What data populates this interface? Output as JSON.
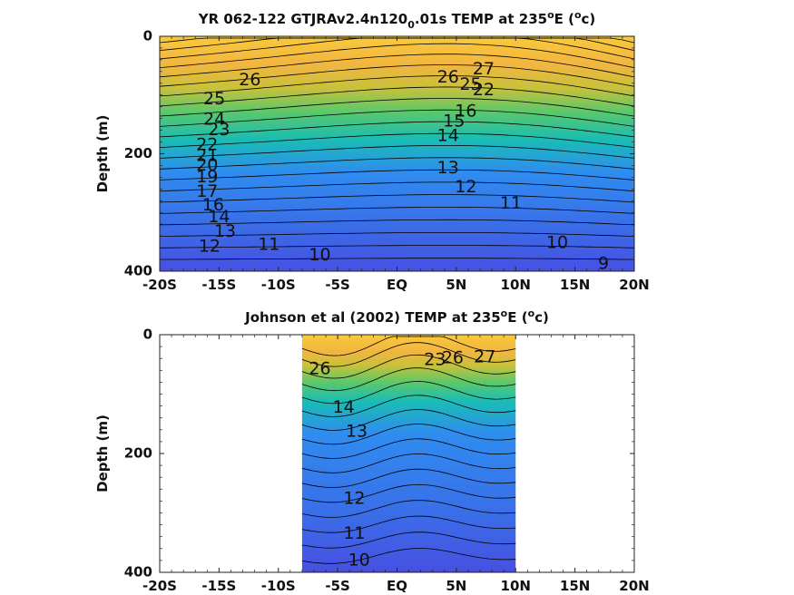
{
  "chart_data": [
    {
      "type": "heatmap",
      "subtype": "filled-contour depth section",
      "title": "YR 062-122 GTJRAv2.4n120",
      "title_subscript": "0",
      "title_suffix": ".01s TEMP at 235",
      "title_degree": "o",
      "title_end": "E (",
      "title_unit_sup": "o",
      "title_unit": "c)",
      "ylabel": "Depth (m)",
      "xlim": [
        -20,
        20
      ],
      "ylim": [
        400,
        0
      ],
      "x_ticks": [
        -20,
        -15,
        -10,
        -5,
        0,
        5,
        10,
        15,
        20
      ],
      "x_tick_labels": [
        "-20S",
        "-15S",
        "-10S",
        "-5S",
        "EQ",
        "5N",
        "10N",
        "15N",
        "20N"
      ],
      "y_ticks": [
        0,
        200,
        400
      ],
      "y_tick_labels": [
        "0",
        "200",
        "400"
      ],
      "colormap": [
        "#3d4de0",
        "#2f8cf0",
        "#19bdb5",
        "#5cc86a",
        "#c9c13a",
        "#f7b93a",
        "#f9d52a"
      ],
      "data_extent": [
        -20,
        20
      ],
      "contour_labels": [
        {
          "text": "26",
          "lat": -12.4,
          "depth": 75
        },
        {
          "text": "25",
          "lat": -15.4,
          "depth": 107
        },
        {
          "text": "24",
          "lat": -15.4,
          "depth": 142
        },
        {
          "text": "23",
          "lat": -15.0,
          "depth": 160
        },
        {
          "text": "22",
          "lat": -16.0,
          "depth": 185
        },
        {
          "text": "21",
          "lat": -16.0,
          "depth": 204
        },
        {
          "text": "20",
          "lat": -16.0,
          "depth": 220
        },
        {
          "text": "19",
          "lat": -16.0,
          "depth": 240
        },
        {
          "text": "17",
          "lat": -16.0,
          "depth": 265
        },
        {
          "text": "16",
          "lat": -15.5,
          "depth": 288
        },
        {
          "text": "14",
          "lat": -15.0,
          "depth": 308
        },
        {
          "text": "13",
          "lat": -14.5,
          "depth": 333
        },
        {
          "text": "12",
          "lat": -15.8,
          "depth": 358
        },
        {
          "text": "11",
          "lat": -10.8,
          "depth": 355
        },
        {
          "text": "10",
          "lat": -6.5,
          "depth": 373
        },
        {
          "text": "26",
          "lat": 4.3,
          "depth": 70
        },
        {
          "text": "27",
          "lat": 7.3,
          "depth": 56
        },
        {
          "text": "25",
          "lat": 6.2,
          "depth": 83
        },
        {
          "text": "22",
          "lat": 7.3,
          "depth": 92
        },
        {
          "text": "16",
          "lat": 5.8,
          "depth": 128
        },
        {
          "text": "15",
          "lat": 4.8,
          "depth": 145
        },
        {
          "text": "14",
          "lat": 4.3,
          "depth": 170
        },
        {
          "text": "13",
          "lat": 4.3,
          "depth": 225
        },
        {
          "text": "12",
          "lat": 5.8,
          "depth": 257
        },
        {
          "text": "11",
          "lat": 9.6,
          "depth": 285
        },
        {
          "text": "10",
          "lat": 13.5,
          "depth": 352
        },
        {
          "text": "9",
          "lat": 17.4,
          "depth": 388
        }
      ]
    },
    {
      "type": "heatmap",
      "subtype": "filled-contour depth section",
      "title": "Johnson et al (2002) TEMP at 235",
      "title_degree": "o",
      "title_end": "E (",
      "title_unit_sup": "o",
      "title_unit": "c)",
      "ylabel": "Depth (m)",
      "xlim": [
        -20,
        20
      ],
      "ylim": [
        400,
        0
      ],
      "x_ticks": [
        -20,
        -15,
        -10,
        -5,
        0,
        5,
        10,
        15,
        20
      ],
      "x_tick_labels": [
        "-20S",
        "-15S",
        "-10S",
        "-5S",
        "EQ",
        "5N",
        "10N",
        "15N",
        "20N"
      ],
      "y_ticks": [
        0,
        200,
        400
      ],
      "y_tick_labels": [
        "0",
        "200",
        "400"
      ],
      "colormap": [
        "#3d4de0",
        "#2f8cf0",
        "#19bdb5",
        "#5cc86a",
        "#c9c13a",
        "#f7b93a",
        "#f9d52a"
      ],
      "data_extent": [
        -8,
        10
      ],
      "contour_labels": [
        {
          "text": "26",
          "lat": -6.5,
          "depth": 58
        },
        {
          "text": "23",
          "lat": 3.2,
          "depth": 43
        },
        {
          "text": "26",
          "lat": 4.7,
          "depth": 40
        },
        {
          "text": "27",
          "lat": 7.4,
          "depth": 38
        },
        {
          "text": "14",
          "lat": -4.5,
          "depth": 123
        },
        {
          "text": "13",
          "lat": -3.4,
          "depth": 163
        },
        {
          "text": "12",
          "lat": -3.6,
          "depth": 276
        },
        {
          "text": "11",
          "lat": -3.6,
          "depth": 335
        },
        {
          "text": "10",
          "lat": -3.2,
          "depth": 380
        }
      ]
    }
  ]
}
